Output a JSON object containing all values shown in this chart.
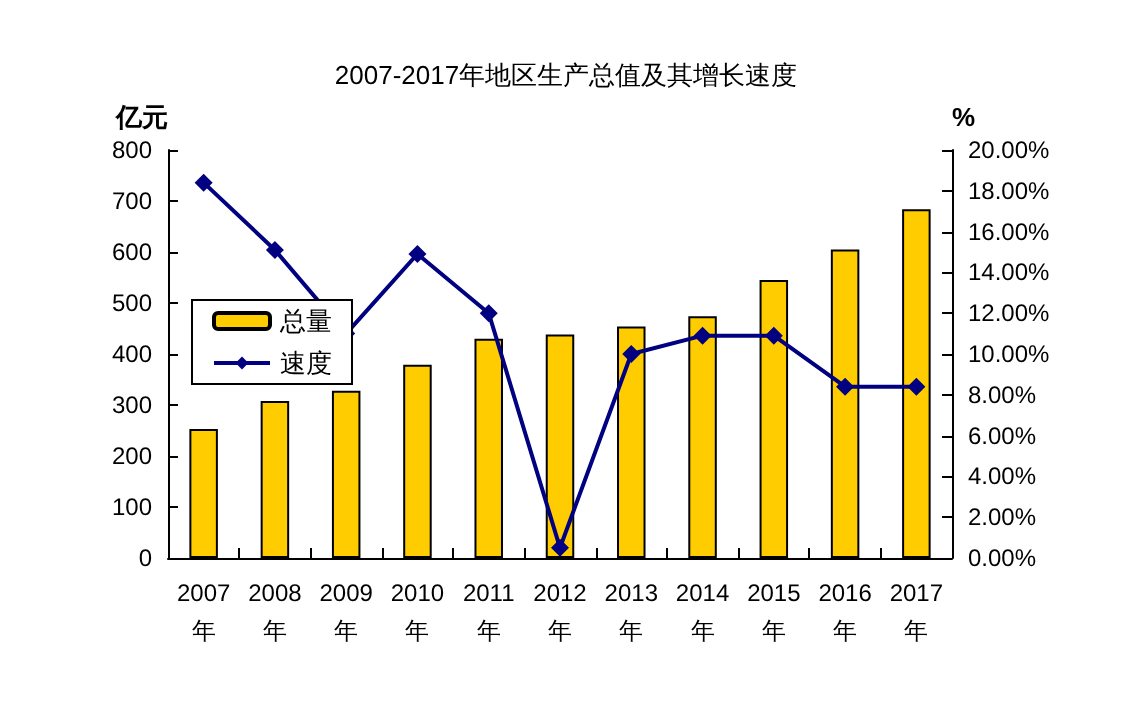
{
  "chart_data": {
    "type": "bar",
    "title": "2007-2017年地区生产总值及其增长速度",
    "ylabel": "亿元",
    "y2label": "%",
    "categories": [
      "2007年",
      "2008年",
      "2009年",
      "2010年",
      "2011年",
      "2012年",
      "2013年",
      "2014年",
      "2015年",
      "2016年",
      "2017年"
    ],
    "series": [
      {
        "name": "总量",
        "color": "#ffcc00",
        "values": [
          253,
          308,
          328,
          379,
          430,
          438,
          454,
          474,
          545,
          605,
          684
        ]
      },
      {
        "name": "速度",
        "type": "line",
        "axis": "y2",
        "color": "#000080",
        "marker": "diamond",
        "values": [
          18.4,
          15.1,
          11.0,
          14.9,
          12.0,
          0.5,
          10.0,
          10.9,
          10.9,
          8.4,
          8.4
        ]
      }
    ],
    "ylim": [
      0,
      800
    ],
    "yticks": [
      0,
      100,
      200,
      300,
      400,
      500,
      600,
      700,
      800
    ],
    "y2lim": [
      0,
      20
    ],
    "y2ticks": [
      {
        "value": 0,
        "label": "0.00%"
      },
      {
        "value": 2,
        "label": "2.00%"
      },
      {
        "value": 4,
        "label": "4.00%"
      },
      {
        "value": 6,
        "label": "6.00%"
      },
      {
        "value": 8,
        "label": "8.00%"
      },
      {
        "value": 10,
        "label": "10.00%"
      },
      {
        "value": 12,
        "label": "12.00%"
      },
      {
        "value": 14,
        "label": "14.00%"
      },
      {
        "value": 16,
        "label": "16.00%"
      },
      {
        "value": 18,
        "label": "18.00%"
      },
      {
        "value": 20,
        "label": "20.00%"
      }
    ],
    "grid": false,
    "legend": "left"
  }
}
